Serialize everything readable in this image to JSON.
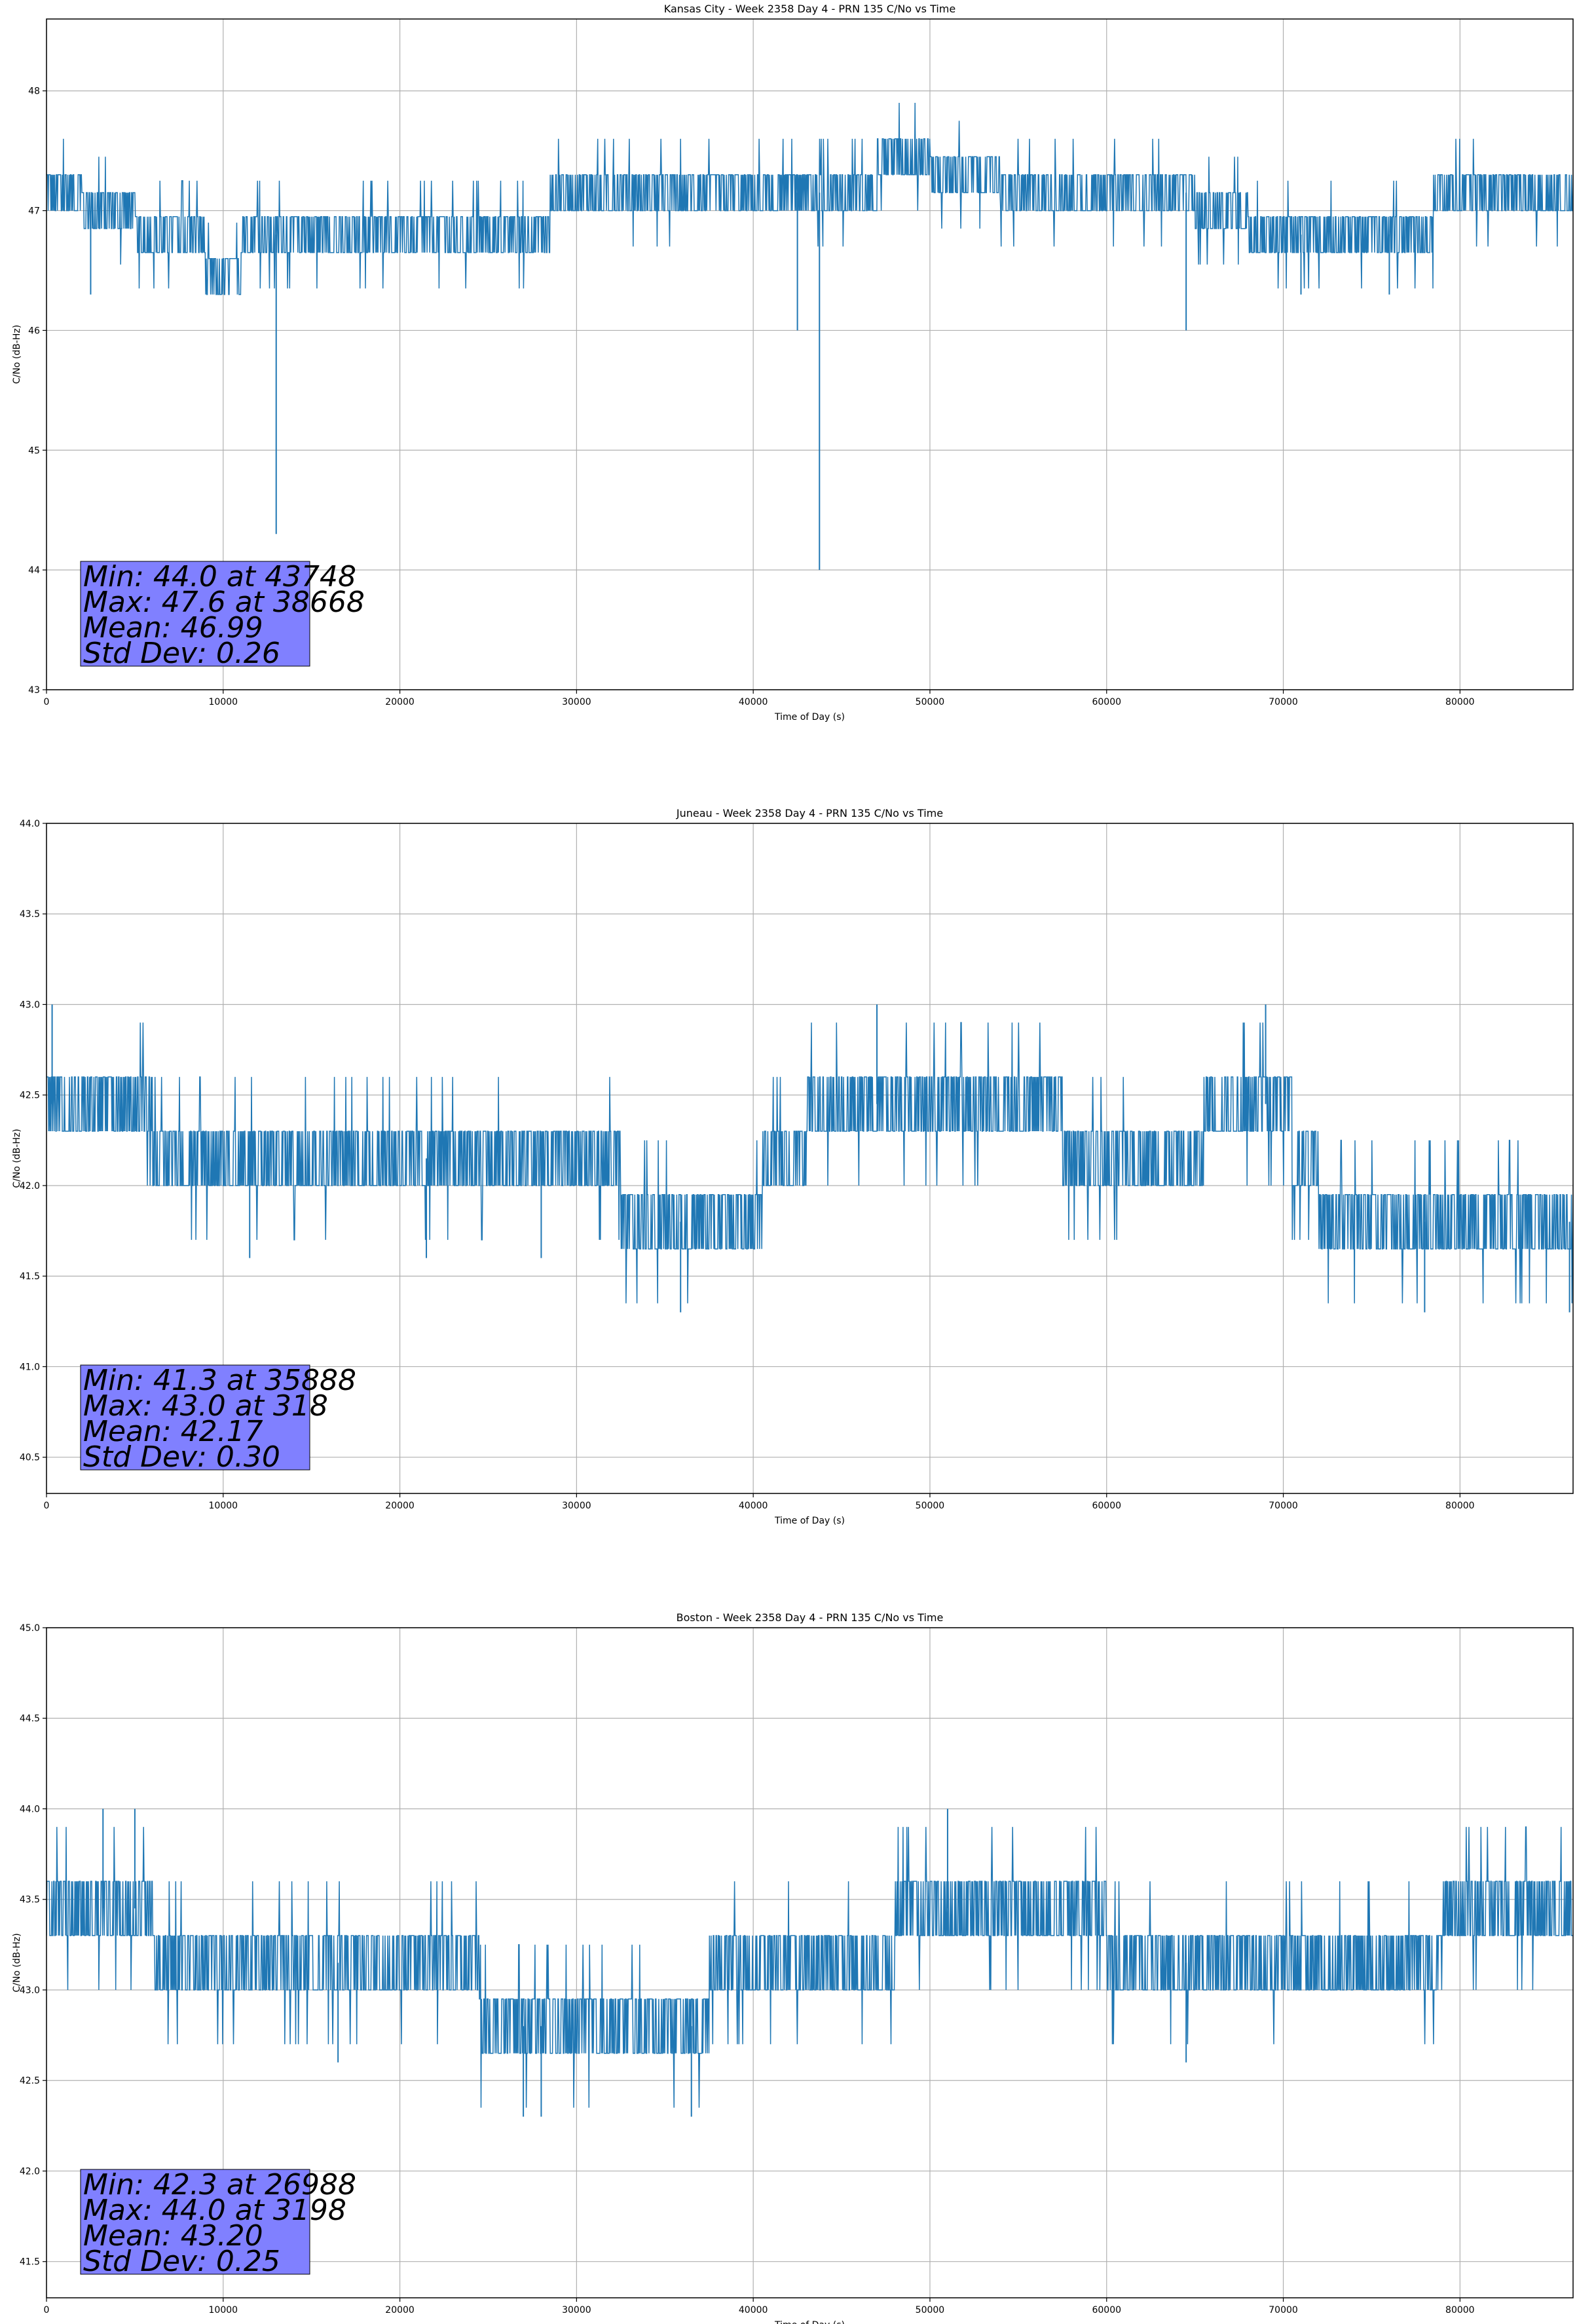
{
  "chart_data": [
    {
      "type": "line",
      "title": "Kansas City - Week 2358 Day 4 - PRN 135 C/No vs Time",
      "xlabel": "Time of Day (s)",
      "ylabel": "C/No (dB-Hz)",
      "xlim": [
        0,
        86400
      ],
      "ylim": [
        43,
        48.6
      ],
      "xticks": [
        0,
        10000,
        20000,
        30000,
        40000,
        50000,
        60000,
        70000,
        80000
      ],
      "xtick_labels": [
        "0",
        "10000",
        "20000",
        "30000",
        "40000",
        "50000",
        "60000",
        "70000",
        "80000"
      ],
      "yticks": [
        43,
        44,
        45,
        46,
        47,
        48
      ],
      "ytick_labels": [
        "43",
        "44",
        "45",
        "46",
        "47",
        "48"
      ],
      "grid": true,
      "line_color": "#1f77b4",
      "series": [
        {
          "name": "C/No",
          "x": [
            0,
            4000,
            6000,
            8000,
            10000,
            12000,
            14000,
            16000,
            20000,
            24000,
            28000,
            29000,
            32000,
            36000,
            38000,
            40000,
            44000,
            46000,
            48000,
            52000,
            56000,
            60000,
            64000,
            66000,
            70000,
            74000,
            78000,
            79000,
            82000,
            86400
          ],
          "base": [
            47.15,
            47.0,
            46.8,
            46.8,
            46.45,
            46.8,
            46.8,
            46.8,
            46.8,
            46.8,
            46.8,
            47.15,
            47.15,
            47.15,
            47.15,
            47.15,
            47.15,
            47.15,
            47.45,
            47.3,
            47.15,
            47.15,
            47.15,
            47.0,
            46.8,
            46.8,
            46.8,
            47.15,
            47.15,
            47.15
          ],
          "spikes": [
            {
              "x": 13000,
              "y": 44.3
            },
            {
              "x": 43748,
              "y": 44.0
            },
            {
              "x": 42500,
              "y": 46.0
            },
            {
              "x": 64500,
              "y": 46.0
            },
            {
              "x": 2500,
              "y": 46.3
            },
            {
              "x": 71000,
              "y": 46.3
            },
            {
              "x": 76000,
              "y": 46.3
            }
          ]
        }
      ],
      "stats": {
        "min": "Min: 44.0 at 43748",
        "max": "Max: 47.6 at 38668",
        "mean": "Mean: 46.99",
        "std": "Std Dev: 0.26"
      },
      "stats_box_color": "#8080ff"
    },
    {
      "type": "line",
      "title": "Juneau - Week 2358 Day 4 - PRN 135 C/No vs Time",
      "xlabel": "Time of Day (s)",
      "ylabel": "C/No (dB-Hz)",
      "xlim": [
        0,
        86400
      ],
      "ylim": [
        40.3,
        44.0
      ],
      "xticks": [
        0,
        10000,
        20000,
        30000,
        40000,
        50000,
        60000,
        70000,
        80000
      ],
      "xtick_labels": [
        "0",
        "10000",
        "20000",
        "30000",
        "40000",
        "50000",
        "60000",
        "70000",
        "80000"
      ],
      "yticks": [
        40.5,
        41.0,
        41.5,
        42.0,
        42.5,
        43.0,
        43.5,
        44.0
      ],
      "ytick_labels": [
        "40.5",
        "41.0",
        "41.5",
        "42.0",
        "42.5",
        "43.0",
        "43.5",
        "44.0"
      ],
      "grid": true,
      "line_color": "#1f77b4",
      "series": [
        {
          "name": "C/No",
          "x": [
            0,
            4000,
            8000,
            12000,
            16000,
            20000,
            24000,
            28000,
            32000,
            33000,
            36000,
            38000,
            40000,
            41000,
            42000,
            44000,
            48000,
            52000,
            56000,
            59000,
            62000,
            64000,
            67000,
            70000,
            71000,
            73000,
            76000,
            80000,
            84000,
            86400
          ],
          "base": [
            42.45,
            42.45,
            42.15,
            42.15,
            42.15,
            42.15,
            42.15,
            42.15,
            42.15,
            41.8,
            41.8,
            41.8,
            41.8,
            42.15,
            42.15,
            42.45,
            42.45,
            42.45,
            42.45,
            42.15,
            42.15,
            42.15,
            42.45,
            42.45,
            42.15,
            41.8,
            41.8,
            41.8,
            41.8,
            41.8
          ],
          "spikes": [
            {
              "x": 318,
              "y": 43.0
            },
            {
              "x": 35888,
              "y": 41.3
            },
            {
              "x": 11500,
              "y": 41.6
            },
            {
              "x": 21500,
              "y": 41.6
            },
            {
              "x": 28000,
              "y": 41.6
            },
            {
              "x": 47000,
              "y": 43.0
            },
            {
              "x": 69000,
              "y": 43.0
            },
            {
              "x": 78000,
              "y": 41.3
            },
            {
              "x": 86200,
              "y": 41.3
            }
          ]
        }
      ],
      "stats": {
        "min": "Min: 41.3 at 35888",
        "max": "Max: 43.0 at 318",
        "mean": "Mean: 42.17",
        "std": "Std Dev: 0.30"
      },
      "stats_box_color": "#8080ff"
    },
    {
      "type": "line",
      "title": "Boston - Week 2358 Day 4 - PRN 135 C/No vs Time",
      "xlabel": "Time of Day (s)",
      "ylabel": "C/No (dB-Hz)",
      "xlim": [
        0,
        86400
      ],
      "ylim": [
        41.3,
        45.0
      ],
      "xticks": [
        0,
        10000,
        20000,
        30000,
        40000,
        50000,
        60000,
        70000,
        80000
      ],
      "xtick_labels": [
        "0",
        "10000",
        "20000",
        "30000",
        "40000",
        "50000",
        "60000",
        "70000",
        "80000"
      ],
      "yticks": [
        41.5,
        42.0,
        42.5,
        43.0,
        43.5,
        44.0,
        44.5,
        45.0
      ],
      "ytick_labels": [
        "41.5",
        "42.0",
        "42.5",
        "43.0",
        "43.5",
        "44.0",
        "44.5",
        "45.0"
      ],
      "grid": true,
      "line_color": "#1f77b4",
      "series": [
        {
          "name": "C/No",
          "x": [
            0,
            4000,
            8000,
            12000,
            16000,
            20000,
            23000,
            26000,
            30000,
            34000,
            36000,
            39000,
            42000,
            46000,
            50000,
            54000,
            58000,
            62000,
            66000,
            70000,
            74000,
            78000,
            80000,
            84000,
            86400
          ],
          "base": [
            43.45,
            43.45,
            43.15,
            43.15,
            43.15,
            43.15,
            43.15,
            42.8,
            42.8,
            42.8,
            42.8,
            43.15,
            43.15,
            43.15,
            43.45,
            43.45,
            43.45,
            43.15,
            43.15,
            43.15,
            43.15,
            43.15,
            43.45,
            43.45,
            43.45
          ],
          "spikes": [
            {
              "x": 3198,
              "y": 44.0
            },
            {
              "x": 26988,
              "y": 42.3
            },
            {
              "x": 28000,
              "y": 42.3
            },
            {
              "x": 36500,
              "y": 42.3
            },
            {
              "x": 16500,
              "y": 42.6
            },
            {
              "x": 64500,
              "y": 42.6
            },
            {
              "x": 51000,
              "y": 44.0
            },
            {
              "x": 5000,
              "y": 44.0
            }
          ]
        }
      ],
      "stats": {
        "min": "Min: 42.3 at 26988",
        "max": "Max: 44.0 at 3198",
        "mean": "Mean: 43.20",
        "std": "Std Dev: 0.25"
      },
      "stats_box_color": "#8080ff"
    }
  ]
}
